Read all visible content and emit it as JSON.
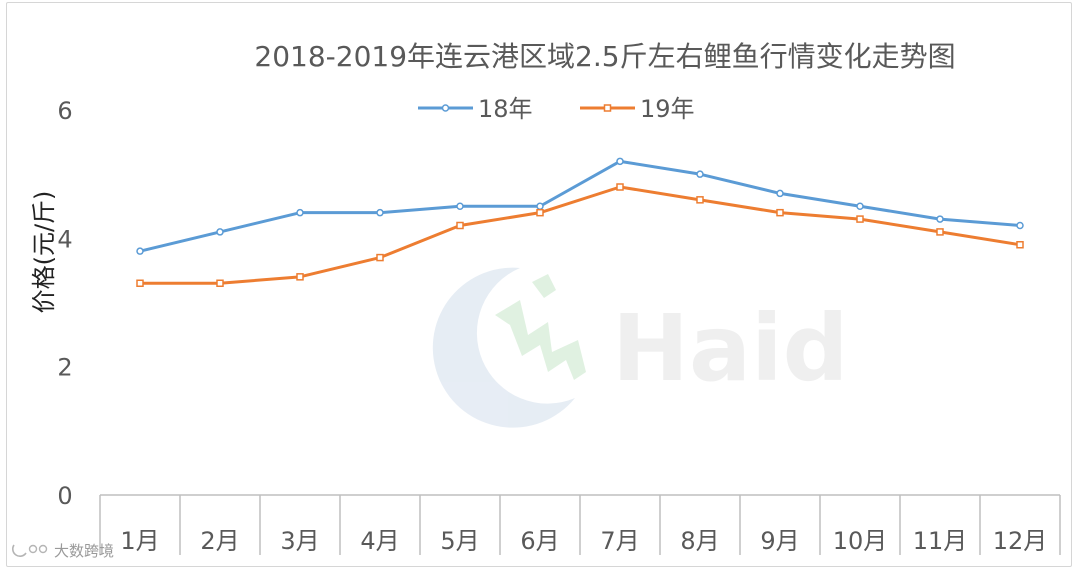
{
  "chart_data": {
    "type": "line",
    "title": "2018-2019年连云港区域2.5斤左右鲤鱼行情变化走势图",
    "xlabel": "",
    "ylabel": "价格(元/斤)",
    "categories": [
      "1月",
      "2月",
      "3月",
      "4月",
      "5月",
      "6月",
      "7月",
      "8月",
      "9月",
      "10月",
      "11月",
      "12月"
    ],
    "ylim": [
      0,
      6
    ],
    "yticks": [
      0,
      2,
      4,
      6
    ],
    "grid": false,
    "legend_position": "top",
    "series": [
      {
        "name": "18年",
        "color": "#5B9BD5",
        "marker": "circle",
        "values": [
          3.8,
          4.1,
          4.4,
          4.4,
          4.5,
          4.5,
          5.2,
          5.0,
          4.7,
          4.5,
          4.3,
          4.2
        ]
      },
      {
        "name": "19年",
        "color": "#ED7D31",
        "marker": "square",
        "values": [
          3.3,
          3.3,
          3.4,
          3.7,
          4.2,
          4.4,
          4.8,
          4.6,
          4.4,
          4.3,
          4.1,
          3.9
        ]
      }
    ]
  },
  "watermarks": {
    "logo_text": "Haid",
    "corner_text": "大数跨境"
  }
}
